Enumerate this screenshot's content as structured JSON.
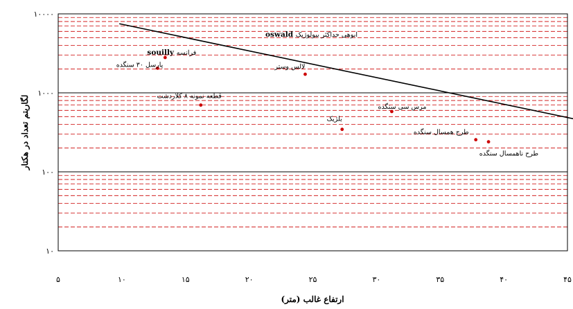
{
  "chart_data": {
    "type": "scatter",
    "xlabel": "ارتفاع غالب (متر)",
    "ylabel": "لگاریتم تعداد در هکتار",
    "x_scale": "linear",
    "y_scale": "log",
    "xlim": [
      5,
      45
    ],
    "ylim": [
      10,
      10000
    ],
    "xticks": [
      5,
      10,
      15,
      20,
      25,
      30,
      35,
      40,
      45
    ],
    "xtick_labels": [
      "۵",
      "۱۰",
      "۱۵",
      "۲۰",
      "۲۵",
      "۳۰",
      "۳۵",
      "۴۰",
      "۴۵"
    ],
    "yticks": [
      10,
      100,
      1000,
      10000
    ],
    "ytick_labels": [
      "۱۰",
      "۱۰۰",
      "۱۰۰۰",
      "۱۰۰۰۰"
    ],
    "grid": {
      "major_color": "#000000",
      "minor_color": "#cc0000",
      "minor_style": "dashed"
    },
    "line": {
      "name": "oswald ابوهی حداکثر بیولوژیک",
      "label_prefix": "ابوهی حداکثر بیولوژیک",
      "label_bold": "oswald",
      "x": [
        9.8,
        47.2
      ],
      "y": [
        7500,
        410
      ],
      "color": "#000000"
    },
    "points": [
      {
        "label": "فرانسه",
        "label_bold": "souilly",
        "x": 13.4,
        "y": 2800,
        "color": "#cc0000"
      },
      {
        "label": "پارسل ۳۰ سنگده",
        "x": 12.8,
        "y": 2050,
        "color": "#cc0000"
      },
      {
        "label": "لالس وستر",
        "x": 24.4,
        "y": 1720,
        "color": "#cc0000"
      },
      {
        "label": "قطعه نمونه ۸ کلاردشت",
        "x": 16.2,
        "y": 700,
        "color": "#cc0000"
      },
      {
        "label": "مرس سی سنگده",
        "x": 31.2,
        "y": 580,
        "color": "#cc0000"
      },
      {
        "label": "بلژیک",
        "x": 27.3,
        "y": 345,
        "color": "#cc0000"
      },
      {
        "label": "طرح همسال سنگده",
        "x": 37.8,
        "y": 255,
        "color": "#cc0000"
      },
      {
        "label": "طرح ناهمسال سنگده",
        "x": 38.8,
        "y": 240,
        "color": "#cc0000"
      }
    ]
  }
}
